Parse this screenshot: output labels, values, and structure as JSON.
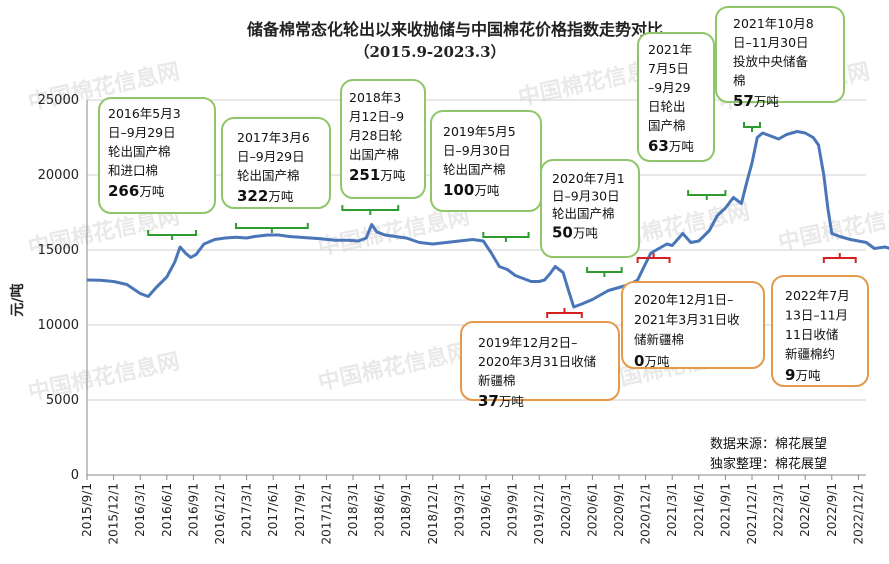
{
  "chart_data": {
    "type": "line",
    "title": "储备棉常态化轮出以来收抛储与中国棉花价格指数走势对比",
    "subtitle": "（2015.9-2023.3）",
    "ylabel": "元/吨",
    "xlabel": "",
    "ylim": [
      0,
      25000
    ],
    "yticks": [
      "0",
      "5000",
      "10000",
      "15000",
      "20000",
      "25000"
    ],
    "grid": true,
    "legend": "none",
    "x_tick_labels": [
      "2015/9/1",
      "2015/12/1",
      "2016/3/1",
      "2016/6/1",
      "2016/9/1",
      "2016/12/1",
      "2017/3/1",
      "2017/6/1",
      "2017/9/1",
      "2017/12/1",
      "2018/3/1",
      "2018/6/1",
      "2018/9/1",
      "2018/12/1",
      "2019/3/1",
      "2019/6/1",
      "2019/9/1",
      "2019/12/1",
      "2020/3/1",
      "2020/6/1",
      "2020/9/1",
      "2020/12/1",
      "2021/3/1",
      "2021/6/1",
      "2021/9/1",
      "2021/12/1",
      "2022/3/1",
      "2022/6/1",
      "2022/9/1",
      "2022/12/1"
    ],
    "series": [
      {
        "color": "#4a76b8",
        "points": [
          [
            0,
            13000
          ],
          [
            0.5,
            12980
          ],
          [
            1,
            12900
          ],
          [
            1.5,
            12700
          ],
          [
            2,
            12100
          ],
          [
            2.3,
            11900
          ],
          [
            2.6,
            12500
          ],
          [
            3,
            13200
          ],
          [
            3.3,
            14200
          ],
          [
            3.5,
            15200
          ],
          [
            3.7,
            14800
          ],
          [
            3.9,
            14500
          ],
          [
            4.1,
            14700
          ],
          [
            4.4,
            15400
          ],
          [
            4.8,
            15700
          ],
          [
            5.2,
            15800
          ],
          [
            5.6,
            15850
          ],
          [
            6,
            15800
          ],
          [
            6.3,
            15900
          ],
          [
            6.8,
            16000
          ],
          [
            7.2,
            16000
          ],
          [
            7.6,
            15900
          ],
          [
            8,
            15850
          ],
          [
            8.4,
            15800
          ],
          [
            8.8,
            15750
          ],
          [
            9.3,
            15650
          ],
          [
            9.8,
            15650
          ],
          [
            10.2,
            15600
          ],
          [
            10.5,
            15800
          ],
          [
            10.7,
            16700
          ],
          [
            10.9,
            16200
          ],
          [
            11.2,
            16000
          ],
          [
            11.6,
            15900
          ],
          [
            12,
            15800
          ],
          [
            12.5,
            15500
          ],
          [
            13,
            15400
          ],
          [
            13.5,
            15500
          ],
          [
            14,
            15600
          ],
          [
            14.5,
            15700
          ],
          [
            14.9,
            15600
          ],
          [
            15.2,
            14800
          ],
          [
            15.5,
            13900
          ],
          [
            15.8,
            13700
          ],
          [
            16.1,
            13300
          ],
          [
            16.4,
            13100
          ],
          [
            16.7,
            12900
          ],
          [
            17,
            12900
          ],
          [
            17.2,
            13000
          ],
          [
            17.4,
            13400
          ],
          [
            17.6,
            13900
          ],
          [
            17.9,
            13500
          ],
          [
            18.1,
            12300
          ],
          [
            18.3,
            11200
          ],
          [
            18.6,
            11400
          ],
          [
            19,
            11700
          ],
          [
            19.3,
            12000
          ],
          [
            19.6,
            12300
          ],
          [
            20,
            12500
          ],
          [
            20.4,
            12700
          ],
          [
            20.7,
            13000
          ],
          [
            21,
            14100
          ],
          [
            21.2,
            14800
          ],
          [
            21.5,
            15100
          ],
          [
            21.8,
            15400
          ],
          [
            22,
            15300
          ],
          [
            22.2,
            15700
          ],
          [
            22.4,
            16100
          ],
          [
            22.7,
            15500
          ],
          [
            23,
            15600
          ],
          [
            23.4,
            16300
          ],
          [
            23.7,
            17300
          ],
          [
            24,
            17800
          ],
          [
            24.3,
            18500
          ],
          [
            24.6,
            18100
          ],
          [
            24.8,
            19500
          ],
          [
            25,
            20800
          ],
          [
            25.2,
            22500
          ],
          [
            25.4,
            22800
          ],
          [
            25.7,
            22600
          ],
          [
            26,
            22400
          ],
          [
            26.3,
            22700
          ],
          [
            26.7,
            22900
          ],
          [
            27,
            22800
          ],
          [
            27.3,
            22500
          ],
          [
            27.5,
            22000
          ],
          [
            27.7,
            20000
          ],
          [
            27.85,
            17800
          ],
          [
            28,
            16100
          ],
          [
            28.3,
            15900
          ],
          [
            28.7,
            15700
          ],
          [
            29,
            15600
          ],
          [
            29.3,
            15500
          ],
          [
            29.6,
            15100
          ],
          [
            30,
            15200
          ],
          [
            30.4,
            15000
          ],
          [
            30.8,
            15500
          ]
        ]
      }
    ],
    "annotations": [
      {
        "type": "release",
        "lines": [
          "2016年5月3",
          "日–9月29日",
          "轮出国产棉",
          "和进口棉"
        ],
        "amount": "266",
        "unit": "万吨"
      },
      {
        "type": "release",
        "lines": [
          "2017年3月6",
          "日–9月29日",
          "轮出国产棉"
        ],
        "amount": "322",
        "unit": "万吨"
      },
      {
        "type": "release",
        "lines": [
          "2018年3",
          "月12日–9",
          "月28日轮",
          "出国产棉"
        ],
        "amount": "251",
        "unit": "万吨"
      },
      {
        "type": "release",
        "lines": [
          "2019年5月5",
          "日–9月30日",
          "轮出国产棉"
        ],
        "amount": "100",
        "unit": "万吨"
      },
      {
        "type": "release",
        "lines": [
          "2020年7月1",
          "日–9月30日",
          "轮出国产棉"
        ],
        "amount": "50",
        "unit": "万吨"
      },
      {
        "type": "release",
        "lines": [
          "2021年",
          "7月5日",
          "–9月29",
          "日轮出",
          "国产棉"
        ],
        "amount": "63",
        "unit": "万吨"
      },
      {
        "type": "release",
        "lines": [
          "2021年10月8",
          "日–11月30日",
          "投放中央储备",
          "棉"
        ],
        "amount": "57",
        "unit": "万吨"
      },
      {
        "type": "reserve",
        "lines": [
          "2019年12月2日–",
          "2020年3月31日收储",
          "新疆棉"
        ],
        "amount": "37",
        "unit": "万吨"
      },
      {
        "type": "reserve",
        "lines": [
          "2020年12月1日–",
          "2021年3月31日收",
          "储新疆棉"
        ],
        "amount": "0",
        "unit": "万吨"
      },
      {
        "type": "reserve",
        "lines": [
          "2022年7月",
          "13日–11月",
          "11日收储",
          "新疆棉约"
        ],
        "amount": "9",
        "unit": "万吨"
      }
    ],
    "source_lines": [
      "数据来源：棉花展望",
      "独家整理：棉花展望"
    ]
  }
}
